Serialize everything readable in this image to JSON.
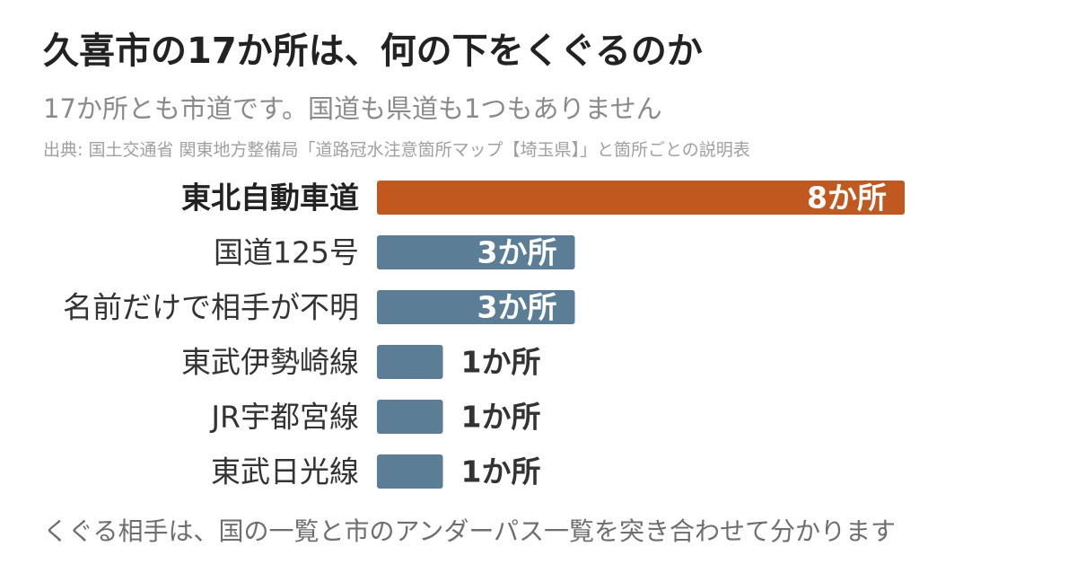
{
  "title": "久喜市の17か所は、何の下をくぐるのか",
  "subtitle": "17か所とも市道です。国道も県道も1つもありません",
  "source": "出典: 国土交通省 関東地方整備局「道路冠水注意箇所マップ【埼玉県】」と箇所ごとの説明表",
  "footnote": "くぐる相手は、国の一覧と市のアンダーパス一覧を突き合わせて分かります",
  "colors": {
    "highlight": "#c0581f",
    "default": "#5b7e96",
    "label_inside": "#ffffff",
    "label_outside": "#333333"
  },
  "chart_data": {
    "type": "bar",
    "orientation": "horizontal",
    "categories": [
      "東北自動車道",
      "国道125号",
      "名前だけで相手が不明",
      "東武伊勢崎線",
      "JR宇都宮線",
      "東武日光線"
    ],
    "values": [
      8,
      3,
      3,
      1,
      1,
      1
    ],
    "data_labels": [
      "8か所",
      "3か所",
      "3か所",
      "1か所",
      "1か所",
      "1か所"
    ],
    "highlight_index": 0,
    "xlim": [
      0,
      8
    ]
  }
}
